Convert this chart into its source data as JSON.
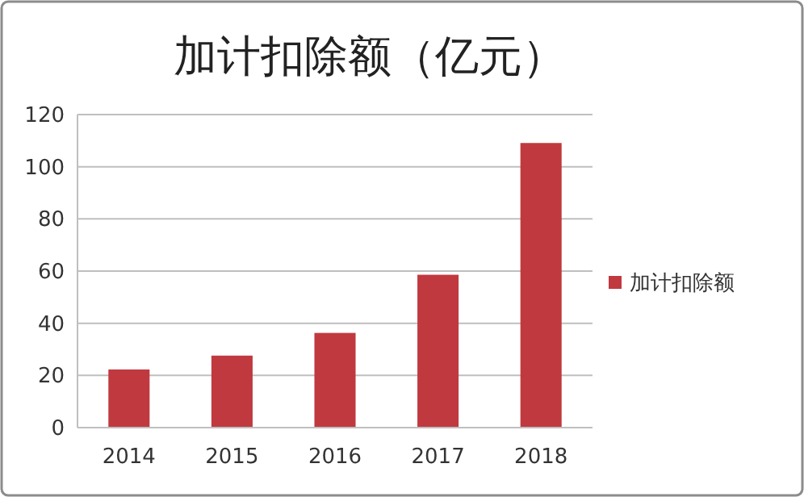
{
  "chart_data": {
    "type": "bar",
    "title": "加计扣除额（亿元）",
    "categories": [
      "2014",
      "2015",
      "2016",
      "2017",
      "2018"
    ],
    "series": [
      {
        "name": "加计扣除额",
        "color": "#c0393f",
        "values": [
          22.3,
          27.6,
          36.3,
          58.6,
          109.1
        ]
      }
    ],
    "ylim": [
      0,
      120
    ],
    "yticks": [
      0,
      20,
      40,
      60,
      80,
      100,
      120
    ],
    "grid": "y",
    "legend": "right"
  }
}
